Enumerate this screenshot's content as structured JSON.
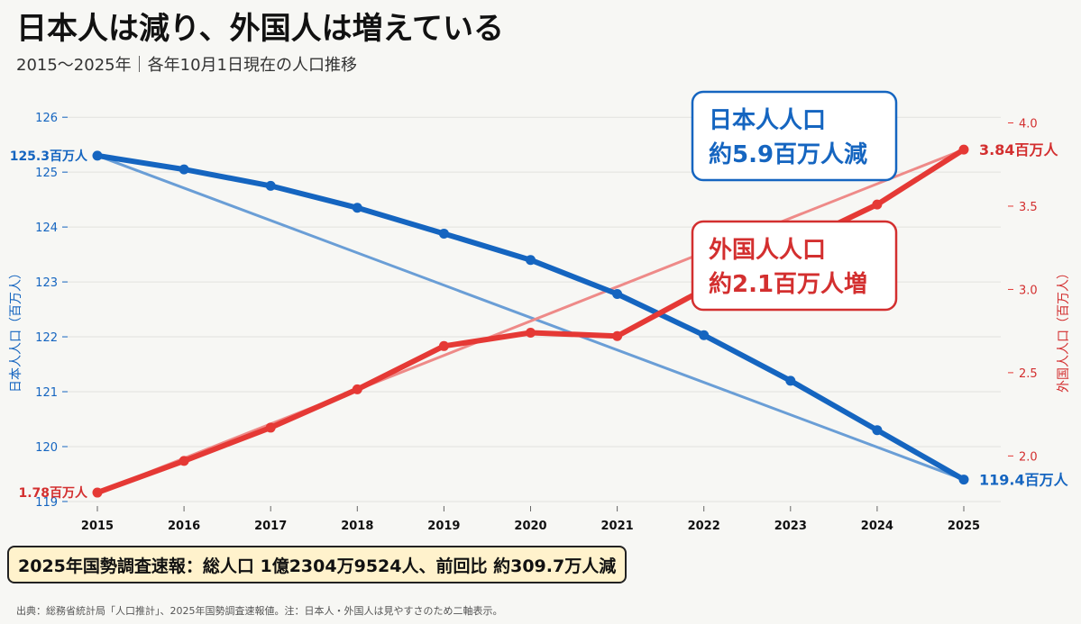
{
  "title": "日本人は減り、外国人は増えている",
  "subtitle": "2015〜2025年｜各年10月1日現在の人口推移",
  "summary": "2025年国勢調査速報：総人口 1億2304万9524人、前回比 約309.7万人減",
  "source": "出典：総務省統計局「人口推計」、2025年国勢調査速報値。注：日本人・外国人は見やすさのため二軸表示。",
  "colors": {
    "japanese": "#1565c0",
    "foreign": "#e53935",
    "japanese_trend": "#6a9ed6",
    "foreign_trend": "#ee8a88"
  },
  "chart_data": {
    "type": "line",
    "x": [
      2015,
      2016,
      2017,
      2018,
      2019,
      2020,
      2021,
      2022,
      2023,
      2024,
      2025
    ],
    "series": [
      {
        "name": "日本人人口",
        "axis": "left",
        "values": [
          125.3,
          125.05,
          124.75,
          124.35,
          123.88,
          123.4,
          122.78,
          122.03,
          121.2,
          120.3,
          119.4
        ]
      },
      {
        "name": "外国人人口",
        "axis": "right",
        "values": [
          1.78,
          1.97,
          2.17,
          2.4,
          2.66,
          2.74,
          2.72,
          3.0,
          3.26,
          3.51,
          3.84
        ]
      }
    ],
    "trend_lines": [
      {
        "axis": "left",
        "from": [
          2015,
          125.3
        ],
        "to": [
          2025,
          119.4
        ]
      },
      {
        "axis": "right",
        "from": [
          2015,
          1.78
        ],
        "to": [
          2025,
          3.84
        ]
      }
    ],
    "ylim_left": [
      118.95,
      126.2
    ],
    "ylim_right": [
      1.71,
      4.1
    ],
    "yticks_left": [
      119,
      120,
      121,
      122,
      123,
      124,
      125,
      126
    ],
    "yticks_right": [
      "2.0",
      "2.5",
      "3.0",
      "3.5",
      "4.0"
    ],
    "ylabel_left": "日本人人口（百万人）",
    "ylabel_right": "外国人人口（百万人）",
    "labels": {
      "jp_start": "125.3百万人",
      "jp_end": "119.4百万人",
      "fr_start": "1.78百万人",
      "fr_end": "3.84百万人"
    },
    "callouts": {
      "japanese": [
        "日本人人口",
        "約5.9百万人減"
      ],
      "foreign": [
        "外国人人口",
        "約2.1百万人増"
      ]
    },
    "grid": true
  }
}
